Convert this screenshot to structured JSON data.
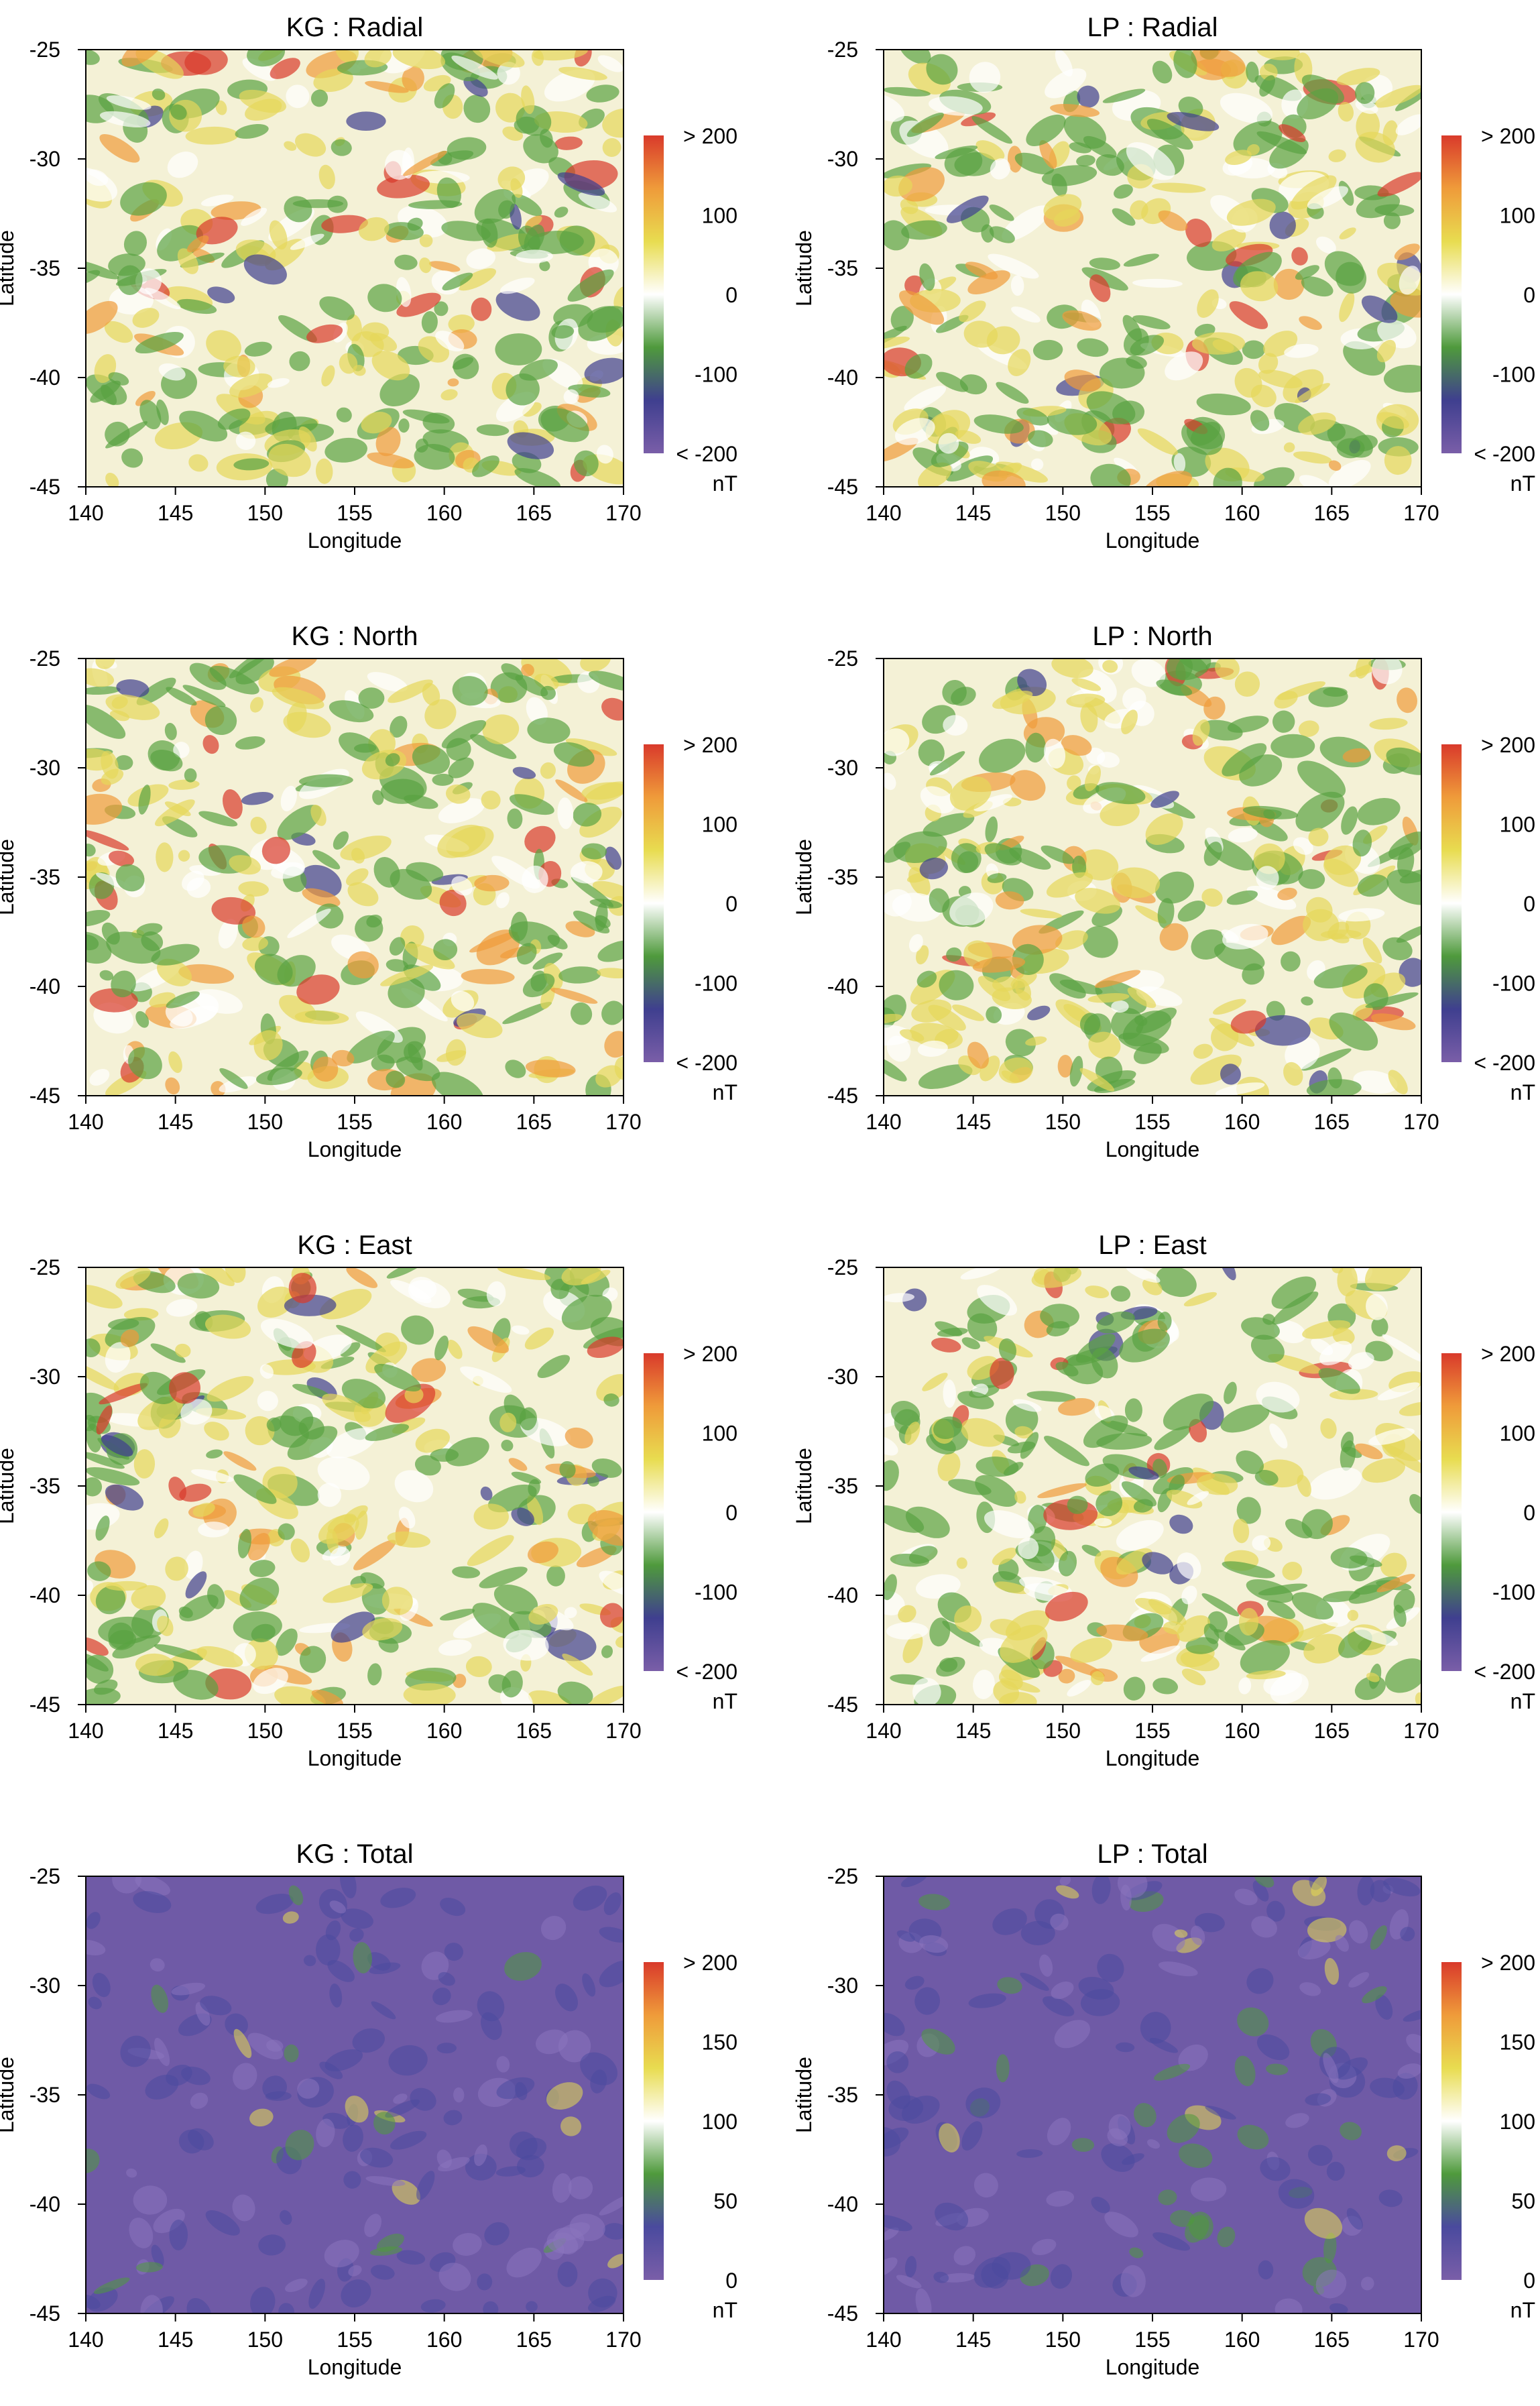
{
  "chart_data": [
    {
      "type": "heatmap",
      "title": "KG : Radial",
      "xlabel": "Longitude",
      "ylabel": "Latitude",
      "xlim": [
        140,
        170
      ],
      "ylim": [
        -45,
        -25
      ],
      "x_ticks": [
        "140",
        "145",
        "150",
        "155",
        "160",
        "165",
        "170"
      ],
      "y_ticks": [
        "-25",
        "-30",
        "-35",
        "-40",
        "-45"
      ],
      "colorbar": {
        "unit": "nT",
        "ticks": [
          "> 200",
          "100",
          "0",
          "-100",
          "< -200"
        ],
        "range": [
          -200,
          200
        ]
      },
      "palette": "diverging"
    },
    {
      "type": "heatmap",
      "title": "LP : Radial",
      "xlabel": "Longitude",
      "ylabel": "Latitude",
      "xlim": [
        140,
        170
      ],
      "ylim": [
        -45,
        -25
      ],
      "x_ticks": [
        "140",
        "145",
        "150",
        "155",
        "160",
        "165",
        "170"
      ],
      "y_ticks": [
        "-25",
        "-30",
        "-35",
        "-40",
        "-45"
      ],
      "colorbar": {
        "unit": "nT",
        "ticks": [
          "> 200",
          "100",
          "0",
          "-100",
          "< -200"
        ],
        "range": [
          -200,
          200
        ]
      },
      "palette": "diverging"
    },
    {
      "type": "heatmap",
      "title": "KG : North",
      "xlabel": "Longitude",
      "ylabel": "Latitude",
      "xlim": [
        140,
        170
      ],
      "ylim": [
        -45,
        -25
      ],
      "x_ticks": [
        "140",
        "145",
        "150",
        "155",
        "160",
        "165",
        "170"
      ],
      "y_ticks": [
        "-25",
        "-30",
        "-35",
        "-40",
        "-45"
      ],
      "colorbar": {
        "unit": "nT",
        "ticks": [
          "> 200",
          "100",
          "0",
          "-100",
          "< -200"
        ],
        "range": [
          -200,
          200
        ]
      },
      "palette": "diverging"
    },
    {
      "type": "heatmap",
      "title": "LP : North",
      "xlabel": "Longitude",
      "ylabel": "Latitude",
      "xlim": [
        140,
        170
      ],
      "ylim": [
        -45,
        -25
      ],
      "x_ticks": [
        "140",
        "145",
        "150",
        "155",
        "160",
        "165",
        "170"
      ],
      "y_ticks": [
        "-25",
        "-30",
        "-35",
        "-40",
        "-45"
      ],
      "colorbar": {
        "unit": "nT",
        "ticks": [
          "> 200",
          "100",
          "0",
          "-100",
          "< -200"
        ],
        "range": [
          -200,
          200
        ]
      },
      "palette": "diverging"
    },
    {
      "type": "heatmap",
      "title": "KG : East",
      "xlabel": "Longitude",
      "ylabel": "Latitude",
      "xlim": [
        140,
        170
      ],
      "ylim": [
        -45,
        -25
      ],
      "x_ticks": [
        "140",
        "145",
        "150",
        "155",
        "160",
        "165",
        "170"
      ],
      "y_ticks": [
        "-25",
        "-30",
        "-35",
        "-40",
        "-45"
      ],
      "colorbar": {
        "unit": "nT",
        "ticks": [
          "> 200",
          "100",
          "0",
          "-100",
          "< -200"
        ],
        "range": [
          -200,
          200
        ]
      },
      "palette": "diverging"
    },
    {
      "type": "heatmap",
      "title": "LP : East",
      "xlabel": "Longitude",
      "ylabel": "Latitude",
      "xlim": [
        140,
        170
      ],
      "ylim": [
        -45,
        -25
      ],
      "x_ticks": [
        "140",
        "145",
        "150",
        "155",
        "160",
        "165",
        "170"
      ],
      "y_ticks": [
        "-25",
        "-30",
        "-35",
        "-40",
        "-45"
      ],
      "colorbar": {
        "unit": "nT",
        "ticks": [
          "> 200",
          "100",
          "0",
          "-100",
          "< -200"
        ],
        "range": [
          -200,
          200
        ]
      },
      "palette": "diverging"
    },
    {
      "type": "heatmap",
      "title": "KG : Total",
      "xlabel": "Longitude",
      "ylabel": "Latitude",
      "xlim": [
        140,
        170
      ],
      "ylim": [
        -45,
        -25
      ],
      "x_ticks": [
        "140",
        "145",
        "150",
        "155",
        "160",
        "165",
        "170"
      ],
      "y_ticks": [
        "-25",
        "-30",
        "-35",
        "-40",
        "-45"
      ],
      "colorbar": {
        "unit": "nT",
        "ticks": [
          "> 200",
          "150",
          "100",
          "50",
          "0"
        ],
        "range": [
          0,
          200
        ]
      },
      "palette": "sequential"
    },
    {
      "type": "heatmap",
      "title": "LP : Total",
      "xlabel": "Longitude",
      "ylabel": "Latitude",
      "xlim": [
        140,
        170
      ],
      "ylim": [
        -45,
        -25
      ],
      "x_ticks": [
        "140",
        "145",
        "150",
        "155",
        "160",
        "165",
        "170"
      ],
      "y_ticks": [
        "-25",
        "-30",
        "-35",
        "-40",
        "-45"
      ],
      "colorbar": {
        "unit": "nT",
        "ticks": [
          "> 200",
          "150",
          "100",
          "50",
          "0"
        ],
        "range": [
          0,
          200
        ]
      },
      "palette": "sequential"
    }
  ],
  "colors": {
    "diverging_stops": [
      "#7a5ea8",
      "#3f3f8f",
      "#4f9a3c",
      "#ffffff",
      "#e8dc50",
      "#ef9b3a",
      "#d93a2b"
    ],
    "sequential_stops": [
      "#7a5ea8",
      "#4a4a9e",
      "#4f9a3c",
      "#ffffff",
      "#e8dc50",
      "#ef9b3a",
      "#d93a2b"
    ]
  }
}
